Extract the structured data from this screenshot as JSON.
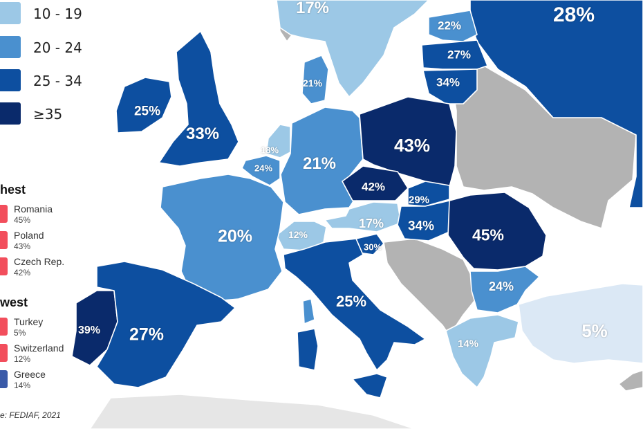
{
  "legend": {
    "ranges": [
      {
        "label": "10 - 19",
        "color": "#9cc8e6"
      },
      {
        "label": "20 - 24",
        "color": "#4a90cf"
      },
      {
        "label": "25 - 34",
        "color": "#0d4fa0"
      },
      {
        "label": "≥35",
        "color": "#0a2a6b"
      }
    ]
  },
  "highest": {
    "title": "hest",
    "items": [
      {
        "name": "Romania",
        "pct": "45%",
        "flag_color": "#f24e5c"
      },
      {
        "name": "Poland",
        "pct": "43%",
        "flag_color": "#f24e5c"
      },
      {
        "name": "Czech Rep.",
        "pct": "42%",
        "flag_color": "#f24e5c"
      }
    ]
  },
  "lowest": {
    "title": "west",
    "items": [
      {
        "name": "Turkey",
        "pct": "5%",
        "flag_color": "#f24e5c"
      },
      {
        "name": "Switzerland",
        "pct": "12%",
        "flag_color": "#f24e5c"
      },
      {
        "name": "Greece",
        "pct": "14%",
        "flag_color": "#3a5aa8"
      }
    ]
  },
  "source": "e: FEDIAF, 2021",
  "countries": [
    {
      "name": "Sweden",
      "value": "17%",
      "color": "#9cc8e6"
    },
    {
      "name": "Estonia",
      "value": "22%",
      "color": "#4a90cf"
    },
    {
      "name": "Russia",
      "value": "28%",
      "color": "#0d4fa0"
    },
    {
      "name": "Latvia",
      "value": "27%",
      "color": "#0d4fa0"
    },
    {
      "name": "Lithuania",
      "value": "34%",
      "color": "#0d4fa0"
    },
    {
      "name": "Denmark",
      "value": "21%",
      "color": "#4a90cf"
    },
    {
      "name": "Ireland",
      "value": "25%",
      "color": "#0d4fa0"
    },
    {
      "name": "United Kingdom",
      "value": "33%",
      "color": "#0d4fa0"
    },
    {
      "name": "Netherlands",
      "value": "18%",
      "color": "#9cc8e6"
    },
    {
      "name": "Belgium",
      "value": "24%",
      "color": "#4a90cf"
    },
    {
      "name": "Germany",
      "value": "21%",
      "color": "#4a90cf"
    },
    {
      "name": "Poland",
      "value": "43%",
      "color": "#0a2a6b"
    },
    {
      "name": "Czech Rep.",
      "value": "42%",
      "color": "#0a2a6b"
    },
    {
      "name": "Slovakia",
      "value": "29%",
      "color": "#0d4fa0"
    },
    {
      "name": "Austria",
      "value": "17%",
      "color": "#9cc8e6"
    },
    {
      "name": "Hungary",
      "value": "34%",
      "color": "#0d4fa0"
    },
    {
      "name": "Romania",
      "value": "45%",
      "color": "#0a2a6b"
    },
    {
      "name": "Switzerland",
      "value": "12%",
      "color": "#9cc8e6"
    },
    {
      "name": "Slovenia",
      "value": "30%",
      "color": "#0d4fa0"
    },
    {
      "name": "France",
      "value": "20%",
      "color": "#4a90cf"
    },
    {
      "name": "Italy",
      "value": "25%",
      "color": "#0d4fa0"
    },
    {
      "name": "Bulgaria",
      "value": "24%",
      "color": "#4a90cf"
    },
    {
      "name": "Greece",
      "value": "14%",
      "color": "#9cc8e6"
    },
    {
      "name": "Turkey",
      "value": "5%",
      "color": "#dbe8f5"
    },
    {
      "name": "Portugal",
      "value": "39%",
      "color": "#0a2a6b"
    },
    {
      "name": "Spain",
      "value": "27%",
      "color": "#0d4fa0"
    }
  ]
}
